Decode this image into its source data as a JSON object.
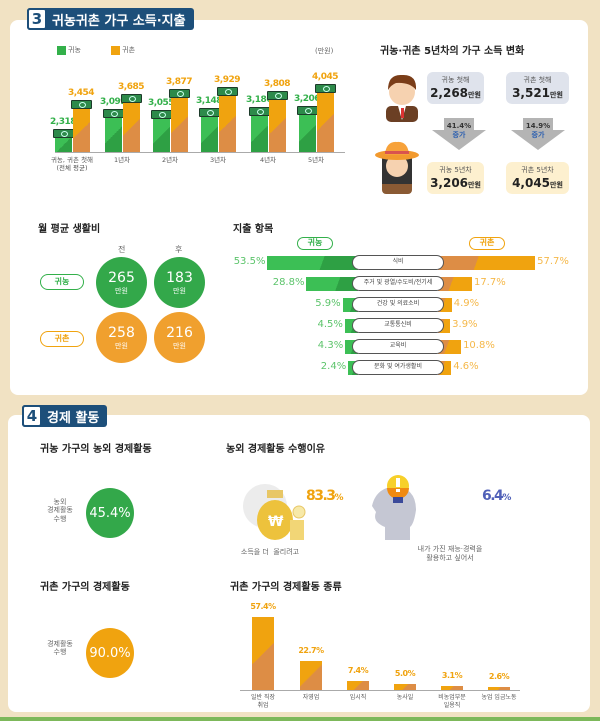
{
  "section3": {
    "number": "3",
    "title": "귀농귀촌 가구 소득·지출",
    "income_chart": {
      "chart_data": {
        "type": "bar",
        "categories": [
          "귀농, 귀촌 첫해\n(전체 평균)",
          "1년차",
          "2년차",
          "3년차",
          "4년차",
          "5년차"
        ],
        "series": [
          {
            "name": "귀농",
            "color": "#33b04a",
            "values": [
              2318,
              3099,
              3055,
              3148,
              3186,
              3206
            ]
          },
          {
            "name": "귀촌",
            "color": "#f0a30f",
            "values": [
              3454,
              3685,
              3877,
              3929,
              3808,
              4045
            ]
          }
        ],
        "value_labels": {
          "귀농": [
            "2,318",
            "3,099",
            "3,055",
            "3,148",
            "3,186",
            "3,206"
          ],
          "귀촌": [
            "3,454",
            "3,685",
            "3,877",
            "3,929",
            "3,808",
            "4,045"
          ]
        },
        "unit": "(만원)",
        "legend": "top-left"
      }
    },
    "income_change": {
      "title": "귀농·귀촌 5년차의 가구 소득 변화",
      "farm_first": {
        "label": "귀농 첫해",
        "value": "2,268",
        "unit": "만원"
      },
      "rural_first": {
        "label": "귀촌 첫해",
        "value": "3,521",
        "unit": "만원"
      },
      "farm_increase": {
        "pct": "41.4%",
        "word": "증가"
      },
      "rural_increase": {
        "pct": "14.9%",
        "word": "증가"
      },
      "farm_5th": {
        "label": "귀농 5년차",
        "value": "3,206",
        "unit": "만원"
      },
      "rural_5th": {
        "label": "귀촌 5년차",
        "value": "4,045",
        "unit": "만원"
      }
    },
    "living_cost": {
      "title": "월 평균 생활비",
      "before": "전",
      "after": "후",
      "unit": "만원",
      "rows": [
        {
          "label": "귀농",
          "before": "265",
          "after": "183"
        },
        {
          "label": "귀촌",
          "before": "258",
          "after": "216"
        }
      ]
    },
    "expense": {
      "title": "지출 항목",
      "left_label": "귀농",
      "right_label": "귀촌",
      "items": [
        {
          "name": "식비",
          "farm": 53.5,
          "rural": 57.7,
          "farm_text": "53.5%",
          "rural_text": "57.7%"
        },
        {
          "name": "주거 및 광열/수도비/전기세",
          "farm": 28.8,
          "rural": 17.7,
          "farm_text": "28.8%",
          "rural_text": "17.7%"
        },
        {
          "name": "건강 및 의료소비",
          "farm": 5.9,
          "rural": 4.9,
          "farm_text": "5.9%",
          "rural_text": "4.9%"
        },
        {
          "name": "교통통신비",
          "farm": 4.5,
          "rural": 3.9,
          "farm_text": "4.5%",
          "rural_text": "3.9%"
        },
        {
          "name": "교육비",
          "farm": 4.3,
          "rural": 10.8,
          "farm_text": "4.3%",
          "rural_text": "10.8%"
        },
        {
          "name": "문화 및 여가생활비",
          "farm": 2.4,
          "rural": 4.6,
          "farm_text": "2.4%",
          "rural_text": "4.6%"
        }
      ]
    }
  },
  "section4": {
    "number": "4",
    "title": "경제 활동",
    "farm_activity": {
      "title": "귀농 가구의 농외 경제활동",
      "label": "농외\n경제활동\n수행",
      "value": "45.4%",
      "fraction": 0.454
    },
    "reasons": {
      "title": "농외 경제활동 수행이유",
      "items": [
        {
          "value": "83.3",
          "unit": "%",
          "caption": "소득을 더  올리려고",
          "icon": "money-bag-icon"
        },
        {
          "value": "6.4",
          "unit": "%",
          "caption": "내가 가진 재능·경력을\n활용하고 싶어서",
          "icon": "head-lightbulb-icon"
        }
      ]
    },
    "rural_activity": {
      "title": "귀촌 가구의 경제활동",
      "label": "경제활동\n수행",
      "value": "90.0%",
      "fraction": 0.9
    },
    "rural_types": {
      "title": "귀촌 가구의 경제활동 종류",
      "chart_data": {
        "type": "bar",
        "categories": [
          "일반 직장\n취업",
          "자영업",
          "임시직",
          "농사일",
          "비농업부문\n일용직",
          "농업 임금노동"
        ],
        "values": [
          57.4,
          22.7,
          7.4,
          5.0,
          3.1,
          2.6
        ],
        "value_labels": [
          "57.4%",
          "22.7%",
          "7.4%",
          "5.0%",
          "3.1%",
          "2.6%"
        ],
        "color": "#f0a30f"
      }
    }
  },
  "colors": {
    "green": "#33b04a",
    "orange": "#f0a30f",
    "navy": "#1d4f7a",
    "background": "#f1e2c3"
  }
}
